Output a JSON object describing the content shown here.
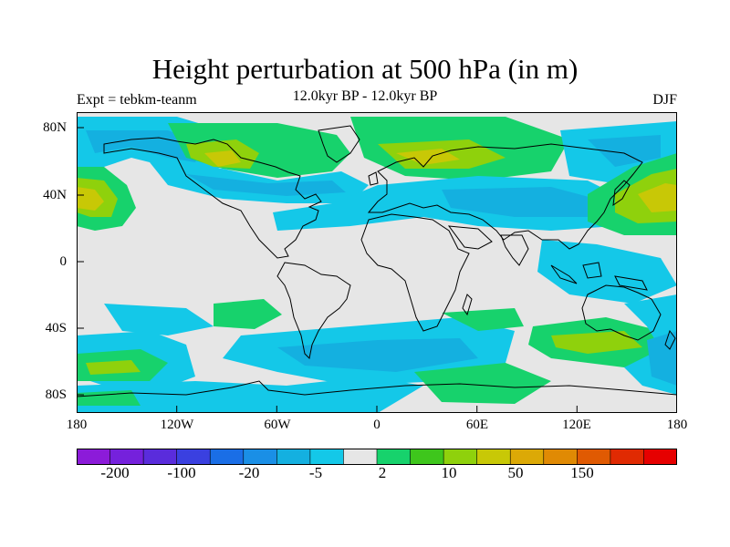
{
  "title": "Height perturbation at 500 hPa (in m)",
  "subtitle_left": "Expt = tebkm-teanm",
  "subtitle_center": "12.0kyr BP - 12.0kyr BP",
  "subtitle_right": "DJF",
  "y_ticks": [
    "80N",
    "40N",
    "0",
    "40S",
    "80S"
  ],
  "x_ticks": [
    "180",
    "120W",
    "60W",
    "0",
    "60E",
    "120E",
    "180"
  ],
  "colorbar": {
    "colors": [
      "#8c1bd9",
      "#7521dc",
      "#5a2cdc",
      "#3a40e0",
      "#1a6ee6",
      "#1a8fe6",
      "#14b0e0",
      "#14c8e8",
      "#e6e6e6",
      "#17d26c",
      "#3ec61c",
      "#8fd10c",
      "#c8c806",
      "#dca906",
      "#e08a04",
      "#e05a02",
      "#e02a02",
      "#e60000"
    ],
    "labels": [
      "-200",
      "-100",
      "-20",
      "-5",
      "2",
      "10",
      "50",
      "150"
    ]
  },
  "map": {
    "background": "#e6e6e6",
    "coastline_color": "#000000"
  }
}
